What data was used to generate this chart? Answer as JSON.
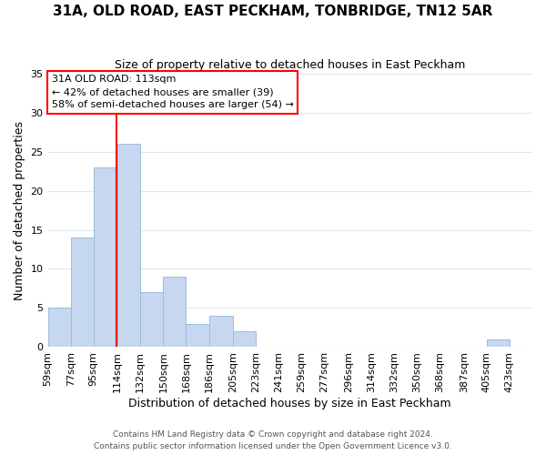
{
  "title": "31A, OLD ROAD, EAST PECKHAM, TONBRIDGE, TN12 5AR",
  "subtitle": "Size of property relative to detached houses in East Peckham",
  "xlabel": "Distribution of detached houses by size in East Peckham",
  "ylabel": "Number of detached properties",
  "bar_color": "#c5d8f0",
  "bar_edge_color": "#a0bcd8",
  "reference_line_x": 113,
  "reference_line_color": "red",
  "bins_left": [
    59,
    77,
    95,
    114,
    132,
    150,
    168,
    186,
    205,
    223,
    241,
    259,
    277,
    296,
    314,
    332,
    350,
    368,
    387,
    405
  ],
  "bin_widths": [
    18,
    18,
    19,
    18,
    18,
    18,
    18,
    19,
    18,
    18,
    18,
    18,
    19,
    18,
    18,
    18,
    18,
    19,
    18,
    18
  ],
  "counts": [
    5,
    14,
    23,
    26,
    7,
    9,
    3,
    4,
    2,
    0,
    0,
    0,
    0,
    0,
    0,
    0,
    0,
    0,
    0,
    1
  ],
  "tick_labels": [
    "59sqm",
    "77sqm",
    "95sqm",
    "114sqm",
    "132sqm",
    "150sqm",
    "168sqm",
    "186sqm",
    "205sqm",
    "223sqm",
    "241sqm",
    "259sqm",
    "277sqm",
    "296sqm",
    "314sqm",
    "332sqm",
    "350sqm",
    "368sqm",
    "387sqm",
    "405sqm",
    "423sqm"
  ],
  "tick_positions": [
    59,
    77,
    95,
    114,
    132,
    150,
    168,
    186,
    205,
    223,
    241,
    259,
    277,
    296,
    314,
    332,
    350,
    368,
    387,
    405,
    423
  ],
  "xlim": [
    59,
    441
  ],
  "ylim": [
    0,
    35
  ],
  "yticks": [
    0,
    5,
    10,
    15,
    20,
    25,
    30,
    35
  ],
  "annotation_title": "31A OLD ROAD: 113sqm",
  "annotation_line1": "← 42% of detached houses are smaller (39)",
  "annotation_line2": "58% of semi-detached houses are larger (54) →",
  "annotation_box_color": "white",
  "annotation_box_edge_color": "red",
  "footer_line1": "Contains HM Land Registry data © Crown copyright and database right 2024.",
  "footer_line2": "Contains public sector information licensed under the Open Government Licence v3.0.",
  "background_color": "white",
  "grid_color": "#dde8f5"
}
